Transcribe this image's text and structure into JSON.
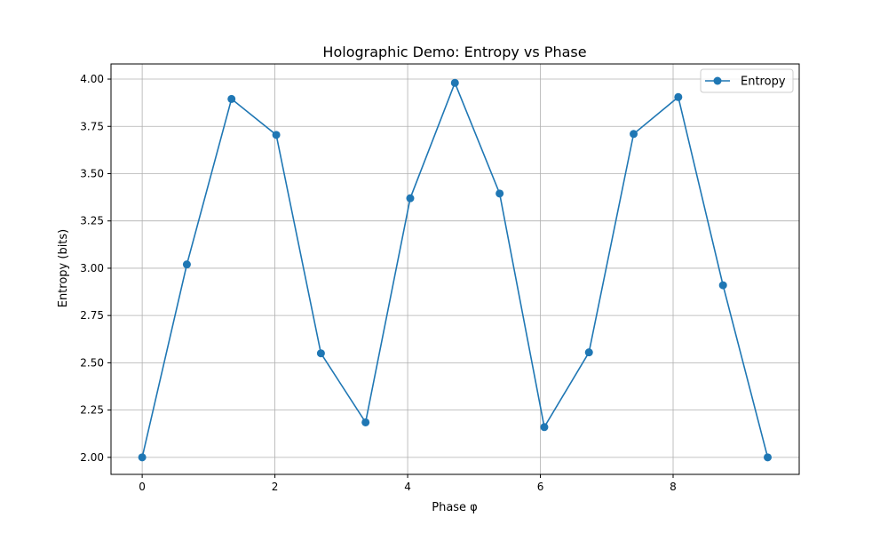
{
  "chart_data": {
    "type": "line",
    "title": "Holographic Demo: Entropy vs Phase",
    "xlabel": "Phase φ",
    "ylabel": "Entropy (bits)",
    "xlim": [
      -0.47,
      9.9
    ],
    "ylim": [
      1.91,
      4.08
    ],
    "xticks": [
      0,
      2,
      4,
      6,
      8
    ],
    "yticks": [
      2.0,
      2.25,
      2.5,
      2.75,
      3.0,
      3.25,
      3.5,
      3.75,
      4.0
    ],
    "xtick_labels": [
      "0",
      "2",
      "4",
      "6",
      "8"
    ],
    "ytick_labels": [
      "2.00",
      "2.25",
      "2.50",
      "2.75",
      "3.00",
      "3.25",
      "3.50",
      "3.75",
      "4.00"
    ],
    "grid": true,
    "legend_position": "top-right",
    "marker": "circle",
    "color": "#1f77b4",
    "series": [
      {
        "name": "Entropy",
        "x": [
          0.0,
          0.673,
          1.346,
          2.02,
          2.693,
          3.366,
          4.039,
          4.712,
          5.386,
          6.059,
          6.732,
          7.405,
          8.078,
          8.752,
          9.425
        ],
        "y": [
          2.0,
          3.02,
          3.895,
          3.705,
          2.55,
          2.185,
          3.37,
          3.98,
          3.395,
          2.16,
          2.555,
          3.71,
          3.905,
          2.91,
          2.0
        ]
      }
    ]
  }
}
